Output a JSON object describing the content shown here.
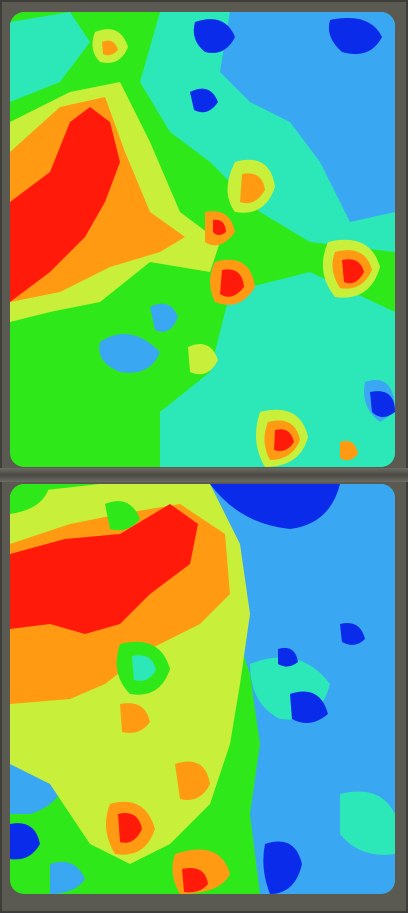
{
  "palette": {
    "red": "#ff1a0a",
    "orange": "#ff9a12",
    "yellow_green": "#c8f03a",
    "green": "#2fe81a",
    "aqua": "#2ce8b8",
    "sky_blue": "#3aa7f2",
    "deep_blue": "#0b2bea",
    "frame": "#5b5a52"
  },
  "panels": [
    {
      "name": "top-thermal-map"
    },
    {
      "name": "bottom-thermal-map"
    }
  ]
}
